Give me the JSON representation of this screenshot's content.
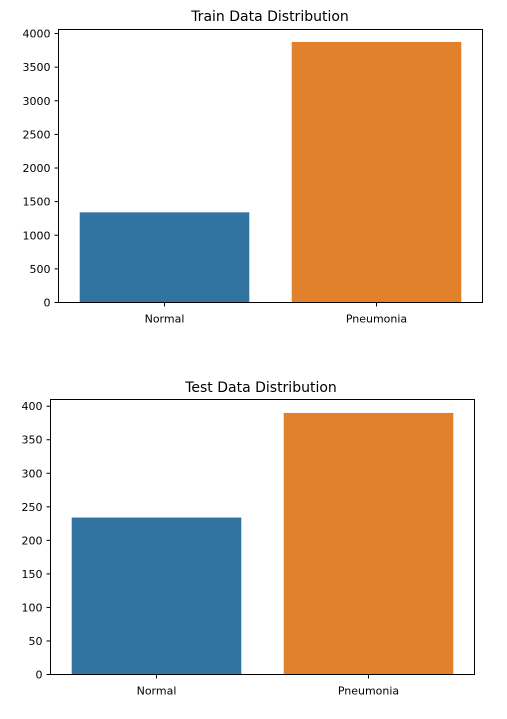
{
  "colors": {
    "normal": "#3274a1",
    "pneumonia": "#e1812c"
  },
  "chart_data": [
    {
      "type": "bar",
      "title": "Train Data Distribution",
      "xlabel": "",
      "ylabel": "",
      "categories": [
        "Normal",
        "Pneumonia"
      ],
      "values": [
        1341,
        3875
      ],
      "ylim": [
        0,
        4060
      ],
      "yticks": [
        0,
        500,
        1000,
        1500,
        2000,
        2500,
        3000,
        3500,
        4000
      ],
      "ytick_labels": [
        "0",
        "500",
        "1000",
        "1500",
        "2000",
        "2500",
        "3000",
        "3500",
        "4000"
      ],
      "grid": false,
      "legend": "none"
    },
    {
      "type": "bar",
      "title": "Test Data Distribution",
      "xlabel": "",
      "ylabel": "",
      "categories": [
        "Normal",
        "Pneumonia"
      ],
      "values": [
        234,
        390
      ],
      "ylim": [
        0,
        410
      ],
      "yticks": [
        0,
        50,
        100,
        150,
        200,
        250,
        300,
        350,
        400
      ],
      "ytick_labels": [
        "0",
        "50",
        "100",
        "150",
        "200",
        "250",
        "300",
        "350",
        "400"
      ],
      "grid": false,
      "legend": "none"
    }
  ]
}
